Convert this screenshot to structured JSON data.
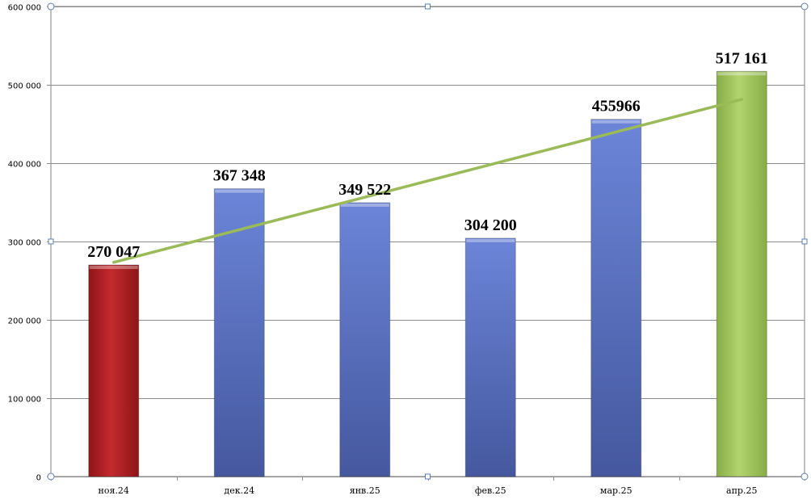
{
  "chart_data": {
    "type": "bar",
    "categories": [
      "ноя.24",
      "дек.24",
      "янв.25",
      "фев.25",
      "мар.25",
      "апр.25"
    ],
    "values": [
      270047,
      367348,
      349522,
      304200,
      455966,
      517161
    ],
    "data_labels": [
      "270 047",
      "367 348",
      "349 522",
      "304 200",
      "455966",
      "517 161"
    ],
    "bar_colors": [
      "#b01f24",
      "#5a74c6",
      "#5a74c6",
      "#5a74c6",
      "#5a74c6",
      "#9cc25c"
    ],
    "ylim": [
      0,
      600000
    ],
    "yticks": [
      0,
      100000,
      200000,
      300000,
      400000,
      500000,
      600000
    ],
    "ytick_labels": [
      "0",
      "100 000",
      "200 000",
      "300 000",
      "400 000",
      "500 000",
      "600 000"
    ],
    "grid": true,
    "legend": "none",
    "trendline": {
      "type": "linear",
      "color": "#9bbb59"
    },
    "title": "",
    "xlabel": "",
    "ylabel": ""
  }
}
